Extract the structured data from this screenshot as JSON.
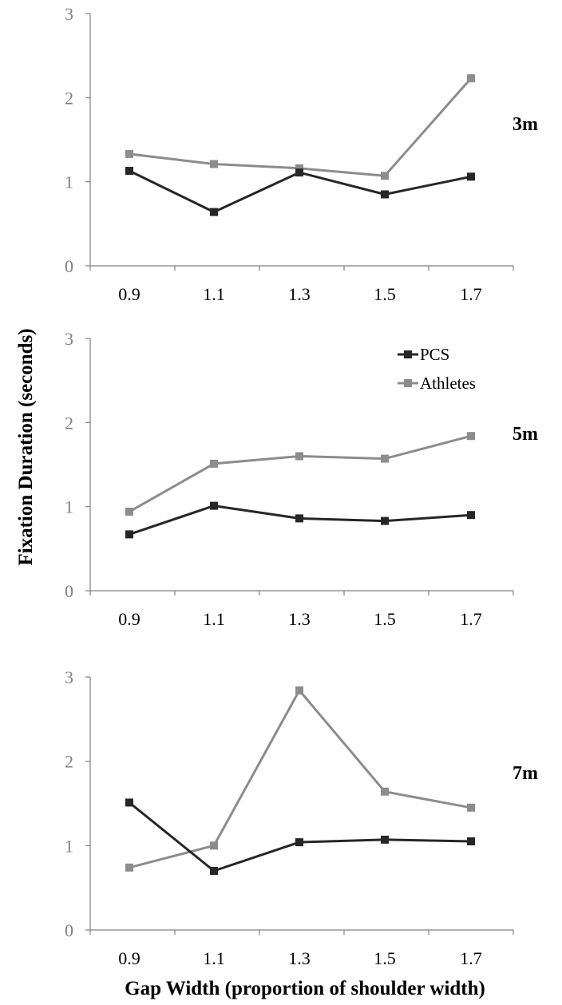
{
  "chart_data": {
    "type": "line",
    "ylabel": "Fixation Duration (seconds)",
    "xlabel": "Gap Width (proportion of shoulder width)",
    "categories": [
      "0.9",
      "1.1",
      "1.3",
      "1.5",
      "1.7"
    ],
    "ylim": [
      0,
      3
    ],
    "yticks": [
      "0",
      "1",
      "2",
      "3"
    ],
    "grid": false,
    "legend": {
      "placement": "top-right of middle panel",
      "entries": [
        "PCS",
        "Athletes"
      ]
    },
    "colors": {
      "PCS": "#262626",
      "Athletes": "#8c8c8c"
    },
    "panels": [
      {
        "label": "3m",
        "series": [
          {
            "name": "PCS",
            "values": [
              1.13,
              0.64,
              1.11,
              0.85,
              1.06
            ]
          },
          {
            "name": "Athletes",
            "values": [
              1.33,
              1.21,
              1.16,
              1.07,
              2.23
            ]
          }
        ]
      },
      {
        "label": "5m",
        "series": [
          {
            "name": "PCS",
            "values": [
              0.67,
              1.01,
              0.86,
              0.83,
              0.9
            ]
          },
          {
            "name": "Athletes",
            "values": [
              0.94,
              1.51,
              1.6,
              1.57,
              1.84
            ]
          }
        ]
      },
      {
        "label": "7m",
        "series": [
          {
            "name": "PCS",
            "values": [
              1.51,
              0.7,
              1.04,
              1.07,
              1.05
            ]
          },
          {
            "name": "Athletes",
            "values": [
              0.74,
              1.0,
              2.84,
              1.64,
              1.45
            ]
          }
        ]
      }
    ]
  }
}
